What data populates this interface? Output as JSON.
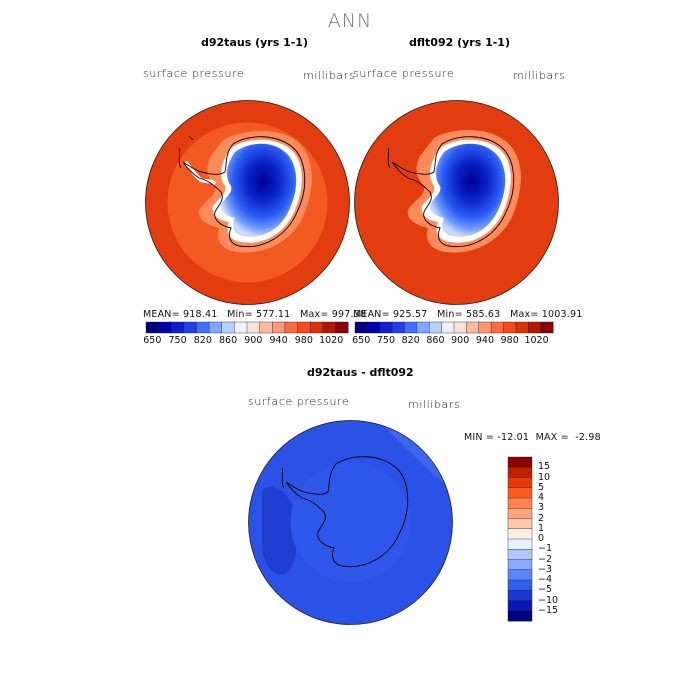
{
  "figure": {
    "title": "ANN"
  },
  "panels": [
    {
      "title": "d92taus (yrs 1-1)",
      "variable": "surface pressure",
      "units": "millibars",
      "stats": {
        "mean_label": "MEAN=",
        "mean": "918.41",
        "min_label": "Min=",
        "min": "577.11",
        "max_label": "Max=",
        "max": "997.38"
      }
    },
    {
      "title": "dflt092 (yrs 1-1)",
      "variable": "surface pressure",
      "units": "millibars",
      "stats": {
        "mean_label": "MEAN=",
        "mean": "925.57",
        "min_label": "Min=",
        "min": "585.63",
        "max_label": "Max=",
        "max": "1003.91"
      }
    }
  ],
  "abs_colorbar": {
    "colors": [
      "#000080",
      "#0000b0",
      "#1020d0",
      "#2040ee",
      "#4070ff",
      "#7fa6ff",
      "#b8d0ff",
      "#eef2ff",
      "#ffe2d5",
      "#ffbaa0",
      "#ff9572",
      "#ff6a40",
      "#f54a1c",
      "#dd3008",
      "#b51600",
      "#8b0000"
    ],
    "tick_labels": [
      "650",
      "750",
      "820",
      "860",
      "900",
      "940",
      "980",
      "1020"
    ]
  },
  "diff_panel": {
    "title": "d92taus - dflt092",
    "variable": "surface pressure",
    "units": "millibars",
    "min_label": "MIN =",
    "min": "-12.01",
    "max_label": "MAX =",
    "max": "-2.98"
  },
  "diff_colorbar": {
    "colors_top_to_bottom": [
      "#8b0000",
      "#c41e00",
      "#e83808",
      "#ff5a20",
      "#ff8250",
      "#ffa47c",
      "#ffc8ac",
      "#fff0e6",
      "#e8f0ff",
      "#b0c8ff",
      "#88aaff",
      "#5a84ff",
      "#3060f0",
      "#1838d8",
      "#0a14b8",
      "#000080"
    ],
    "tick_labels": [
      "15",
      "10",
      "5",
      "4",
      "3",
      "2",
      "1",
      "0",
      "−1",
      "−2",
      "−3",
      "−4",
      "−5",
      "−10",
      "−15"
    ]
  },
  "colors": {
    "ocean_pressure": "#e23c0f",
    "land_outline": "#000000",
    "diff_field": "#2b52e6"
  }
}
